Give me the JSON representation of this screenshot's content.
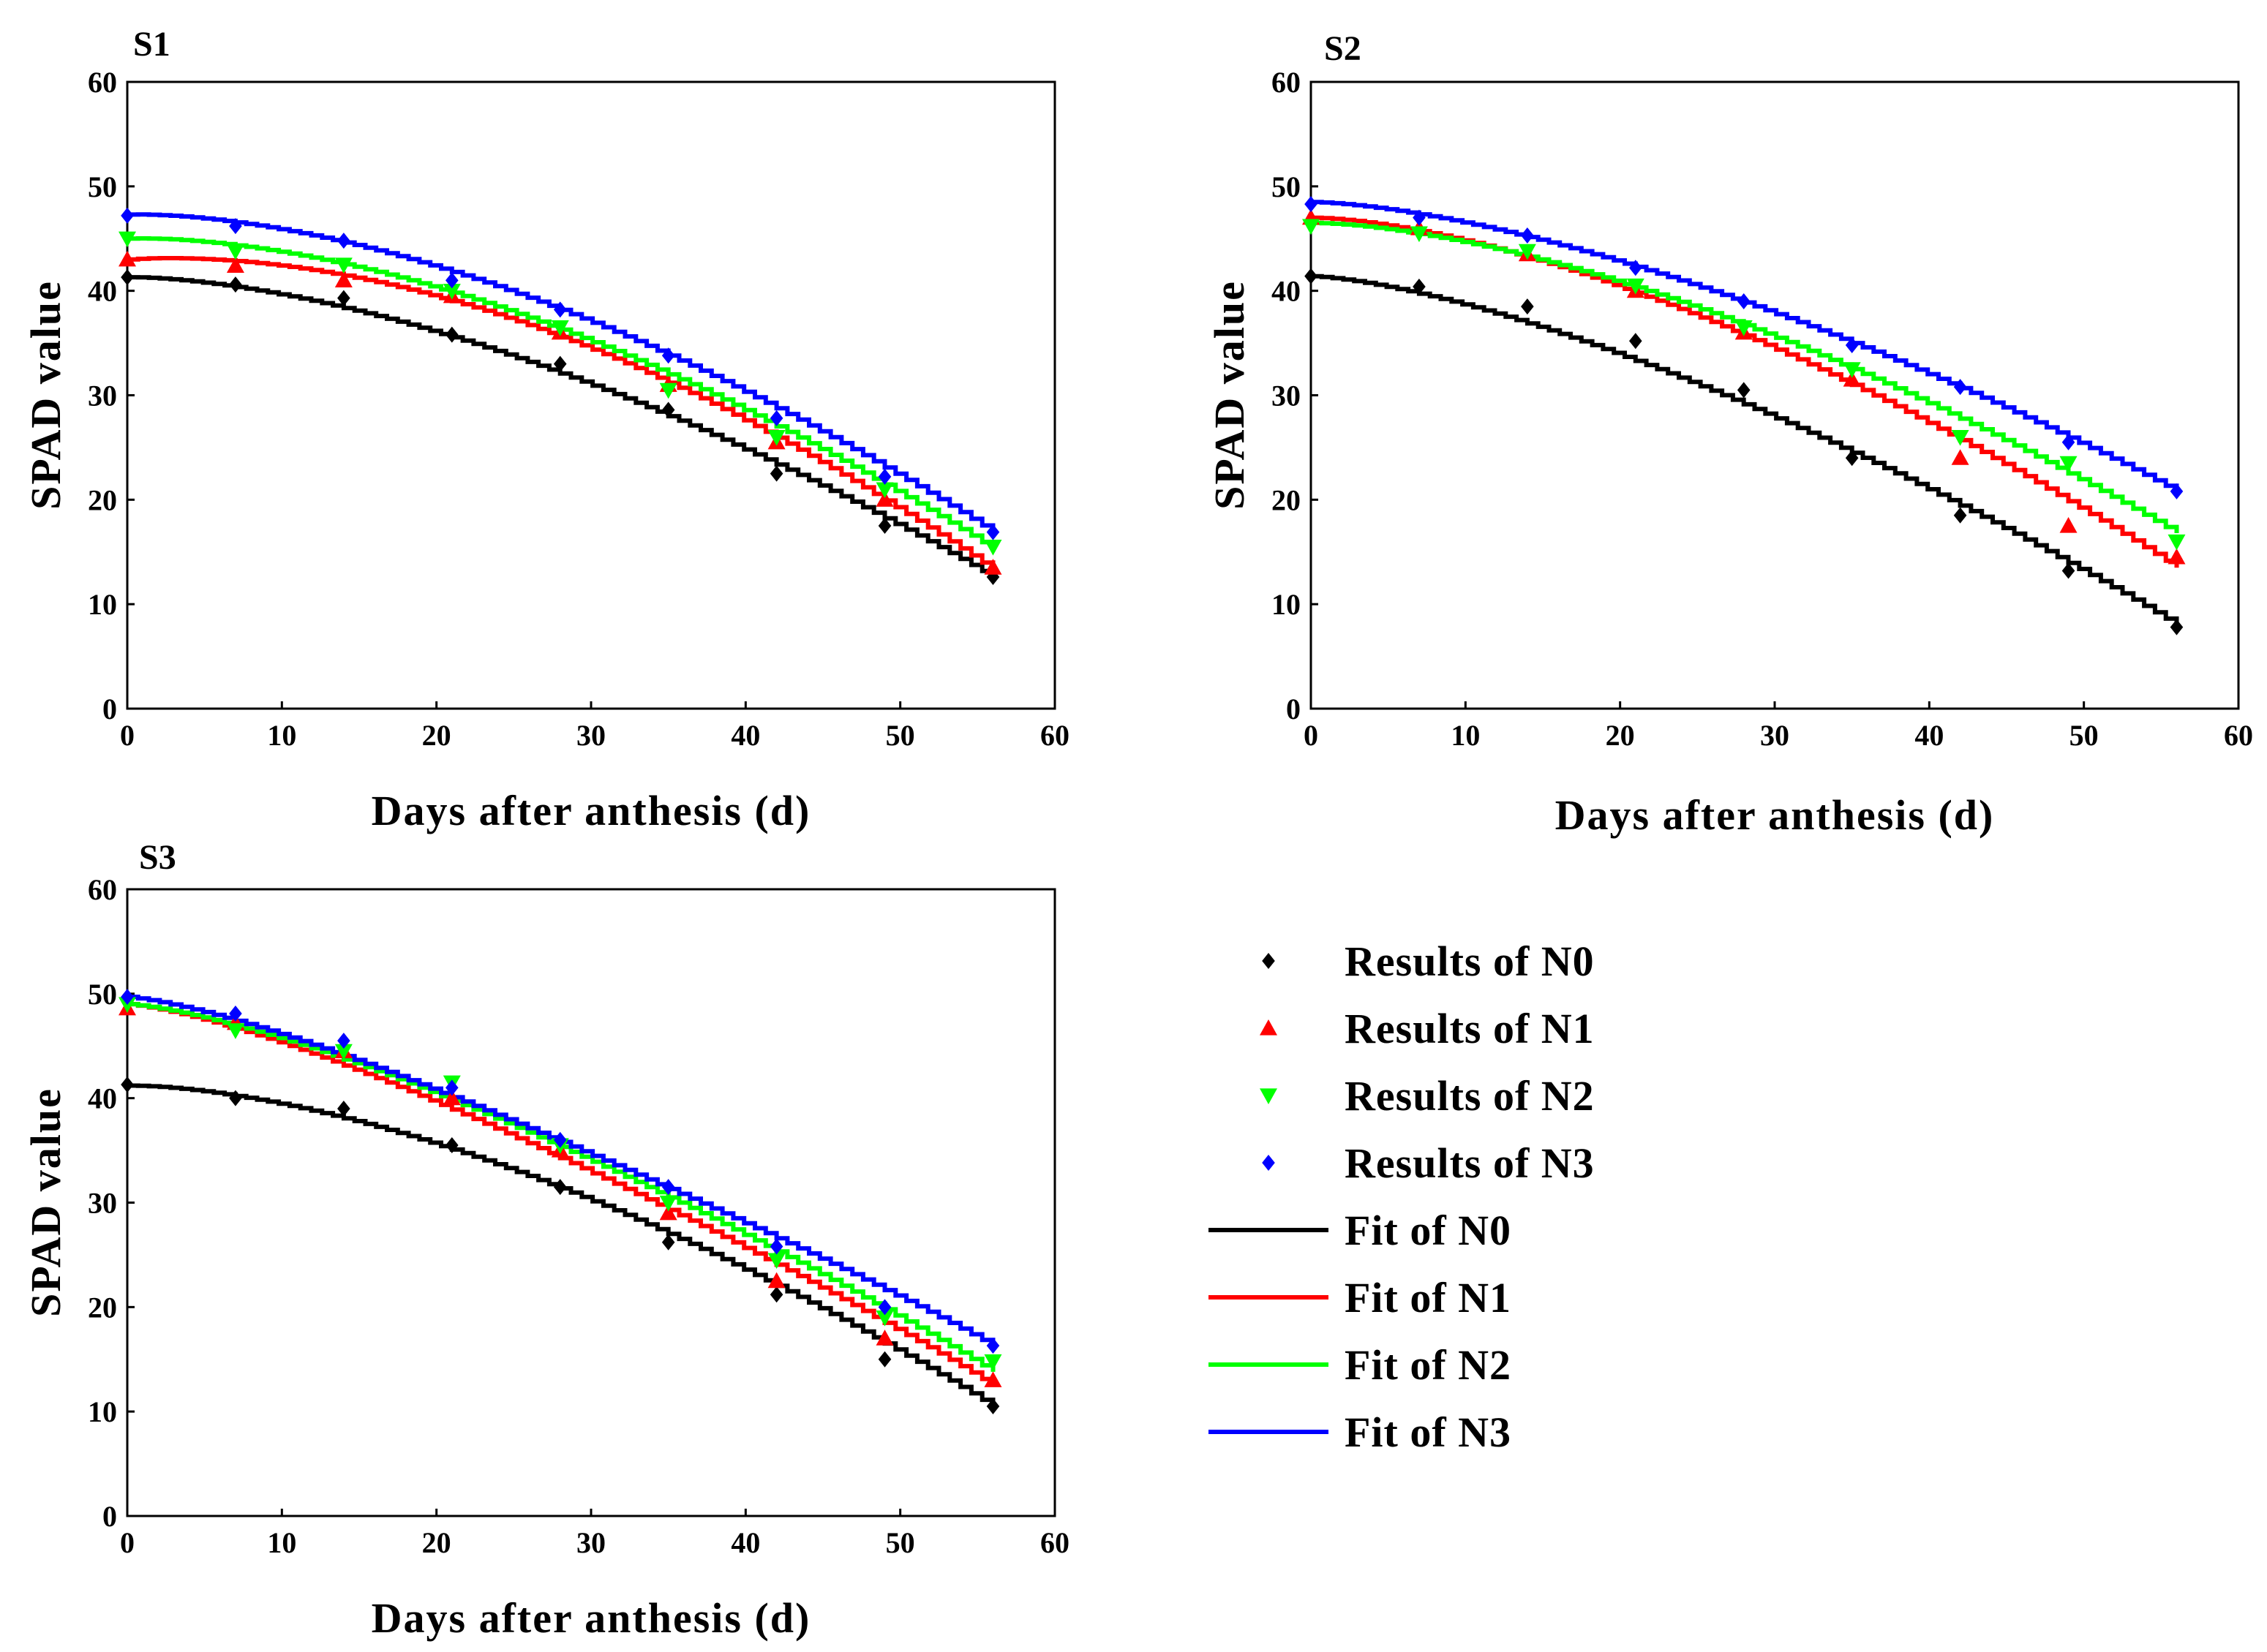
{
  "colors": {
    "N0": "#000000",
    "N1": "#ff0000",
    "N2": "#00ff00",
    "N3": "#0000ff"
  },
  "legend": [
    {
      "key": "N0",
      "label": "Results of  N0",
      "kind": "marker",
      "marker": "diamond"
    },
    {
      "key": "N1",
      "label": "Results of  N1",
      "kind": "marker",
      "marker": "triangle-up"
    },
    {
      "key": "N2",
      "label": "Results of  N2",
      "kind": "marker",
      "marker": "triangle-down"
    },
    {
      "key": "N3",
      "label": "Results of  N3",
      "kind": "marker",
      "marker": "diamond"
    },
    {
      "key": "N0",
      "label": "Fit of  N0",
      "kind": "line"
    },
    {
      "key": "N1",
      "label": "Fit of  N1",
      "kind": "line"
    },
    {
      "key": "N2",
      "label": "Fit of  N2",
      "kind": "line"
    },
    {
      "key": "N3",
      "label": "Fit of  N3",
      "kind": "line"
    }
  ],
  "chart_data": [
    {
      "type": "line",
      "title": "S1",
      "xlabel": "Days after anthesis (d)",
      "ylabel": "SPAD value",
      "xlim": [
        0,
        60
      ],
      "ylim": [
        0,
        60
      ],
      "xticks": [
        "0",
        "10",
        "20",
        "30",
        "40",
        "50",
        "60"
      ],
      "yticks": [
        "0",
        "10",
        "20",
        "30",
        "40",
        "50",
        "60"
      ],
      "x": [
        0,
        7,
        14,
        21,
        28,
        35,
        42,
        49,
        56
      ],
      "series": [
        {
          "name": "N0",
          "observed": [
            41.3,
            40.6,
            39.3,
            35.8,
            33.0,
            28.6,
            22.5,
            17.5,
            12.6
          ],
          "fit_start": 41.3,
          "fit_end": 12.6,
          "fit_mid": 28.0
        },
        {
          "name": "N1",
          "observed": [
            43.0,
            42.4,
            41.0,
            39.5,
            36.0,
            31.0,
            25.5,
            20.0,
            13.5
          ],
          "fit_start": 43.0,
          "fit_end": 13.3,
          "fit_mid": 31.2
        },
        {
          "name": "N2",
          "observed": [
            45.0,
            43.8,
            42.5,
            40.0,
            36.5,
            30.5,
            26.0,
            21.0,
            15.5
          ],
          "fit_start": 45.0,
          "fit_end": 15.3,
          "fit_mid": 32.0
        },
        {
          "name": "N3",
          "observed": [
            47.2,
            46.2,
            44.8,
            41.0,
            38.2,
            33.8,
            27.8,
            22.2,
            16.9
          ],
          "fit_start": 47.3,
          "fit_end": 16.9,
          "fit_mid": 33.8
        }
      ]
    },
    {
      "type": "line",
      "title": "S2",
      "xlabel": "Days after anthesis (d)",
      "ylabel": "SPAD value",
      "xlim": [
        0,
        60
      ],
      "ylim": [
        0,
        60
      ],
      "xticks": [
        "0",
        "10",
        "20",
        "30",
        "40",
        "50",
        "60"
      ],
      "yticks": [
        "0",
        "10",
        "20",
        "30",
        "40",
        "50",
        "60"
      ],
      "x": [
        0,
        7,
        14,
        21,
        28,
        35,
        42,
        49,
        56
      ],
      "series": [
        {
          "name": "N0",
          "observed": [
            41.4,
            40.4,
            38.5,
            35.2,
            30.5,
            24.0,
            18.5,
            13.2,
            7.8
          ],
          "fit_start": 41.4,
          "fit_end": 8.0,
          "fit_mid": 24.5
        },
        {
          "name": "N1",
          "observed": [
            47.0,
            46.0,
            43.5,
            40.0,
            36.0,
            31.5,
            24.0,
            17.5,
            14.5
          ],
          "fit_start": 47.0,
          "fit_end": 13.5,
          "fit_mid": 31.0
        },
        {
          "name": "N2",
          "observed": [
            46.2,
            45.5,
            43.8,
            40.5,
            36.5,
            32.5,
            26.0,
            23.5,
            16.0
          ],
          "fit_start": 46.5,
          "fit_end": 16.8,
          "fit_mid": 32.5
        },
        {
          "name": "N3",
          "observed": [
            48.3,
            47.0,
            45.3,
            42.2,
            39.0,
            34.8,
            30.8,
            25.5,
            20.8
          ],
          "fit_start": 48.5,
          "fit_end": 20.8,
          "fit_mid": 35.0
        }
      ]
    },
    {
      "type": "line",
      "title": "S3",
      "xlabel": "Days after anthesis (d)",
      "ylabel": "SPAD value",
      "xlim": [
        0,
        60
      ],
      "ylim": [
        0,
        60
      ],
      "xticks": [
        "0",
        "10",
        "20",
        "30",
        "40",
        "50",
        "60"
      ],
      "yticks": [
        "0",
        "10",
        "20",
        "30",
        "40",
        "50",
        "60"
      ],
      "x": [
        0,
        7,
        14,
        21,
        28,
        35,
        42,
        49,
        56
      ],
      "series": [
        {
          "name": "N0",
          "observed": [
            41.3,
            40.0,
            39.0,
            35.5,
            31.5,
            26.2,
            21.2,
            15.0,
            10.5
          ],
          "fit_start": 41.2,
          "fit_end": 10.5,
          "fit_mid": 27.0
        },
        {
          "name": "N1",
          "observed": [
            48.6,
            47.2,
            44.5,
            40.0,
            35.0,
            29.0,
            22.5,
            17.0,
            13.0
          ],
          "fit_start": 49.0,
          "fit_end": 12.5,
          "fit_mid": 29.3
        },
        {
          "name": "N2",
          "observed": [
            49.0,
            46.5,
            44.5,
            41.5,
            35.5,
            30.0,
            24.5,
            19.0,
            14.8
          ],
          "fit_start": 49.0,
          "fit_end": 13.8,
          "fit_mid": 30.5
        },
        {
          "name": "N3",
          "observed": [
            49.7,
            48.1,
            45.5,
            41.0,
            36.0,
            31.5,
            25.8,
            20.0,
            16.3
          ],
          "fit_start": 49.7,
          "fit_end": 16.3,
          "fit_mid": 31.3
        }
      ]
    }
  ]
}
